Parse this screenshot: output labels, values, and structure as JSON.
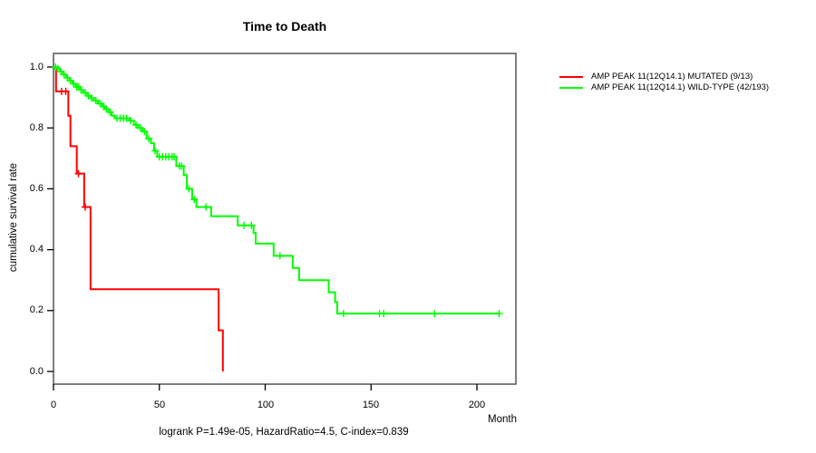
{
  "chart_data": {
    "type": "line",
    "subtype": "kaplan-meier-step",
    "title": "Time to Death",
    "xlabel": "Month",
    "ylabel": "cumulative survival rate",
    "annotation": "logrank P=1.49e-05, HazardRatio=4.5, C-index=0.839",
    "xlim": [
      0,
      218
    ],
    "ylim": [
      0,
      1
    ],
    "x_ticks": [
      "0",
      "50",
      "100",
      "150",
      "200"
    ],
    "x_tick_values": [
      0,
      50,
      100,
      150,
      200
    ],
    "y_ticks": [
      "1.0",
      "0.8",
      "0.6",
      "0.4",
      "0.2",
      "0.0"
    ],
    "y_tick_values": [
      1.0,
      0.8,
      0.6,
      0.4,
      0.2,
      0.0
    ],
    "grid": false,
    "legend_position": "right-outside",
    "frame_color": "#555555",
    "series": [
      {
        "name": "AMP PEAK 11(12Q14.1) MUTATED (9/13)",
        "color": "#ff0000",
        "steps": [
          [
            0,
            1.0
          ],
          [
            1.2,
            0.92
          ],
          [
            7,
            0.84
          ],
          [
            8,
            0.74
          ],
          [
            11,
            0.65
          ],
          [
            14.5,
            0.54
          ],
          [
            17.5,
            0.27
          ],
          [
            78,
            0.135
          ],
          [
            80,
            0.0
          ]
        ],
        "censors": [
          [
            3.8,
            0.92
          ],
          [
            5.8,
            0.92
          ],
          [
            11.8,
            0.65
          ],
          [
            15,
            0.54
          ]
        ]
      },
      {
        "name": "AMP PEAK 11(12Q14.1) WILD-TYPE (42/193)",
        "color": "#00ff00",
        "steps": [
          [
            0,
            1.0
          ],
          [
            1.5,
            0.995
          ],
          [
            3,
            0.985
          ],
          [
            4.5,
            0.975
          ],
          [
            6,
            0.965
          ],
          [
            7.5,
            0.955
          ],
          [
            9,
            0.945
          ],
          [
            10.5,
            0.935
          ],
          [
            12.5,
            0.925
          ],
          [
            14,
            0.915
          ],
          [
            16,
            0.905
          ],
          [
            17.5,
            0.898
          ],
          [
            19,
            0.89
          ],
          [
            21,
            0.88
          ],
          [
            23,
            0.87
          ],
          [
            24.5,
            0.862
          ],
          [
            26,
            0.852
          ],
          [
            27.5,
            0.84
          ],
          [
            29,
            0.832
          ],
          [
            36,
            0.824
          ],
          [
            38,
            0.81
          ],
          [
            40,
            0.8
          ],
          [
            42,
            0.788
          ],
          [
            44,
            0.765
          ],
          [
            46,
            0.75
          ],
          [
            47.5,
            0.725
          ],
          [
            49,
            0.705
          ],
          [
            58,
            0.675
          ],
          [
            61.5,
            0.645
          ],
          [
            63,
            0.6
          ],
          [
            65.5,
            0.565
          ],
          [
            67.5,
            0.54
          ],
          [
            74.5,
            0.51
          ],
          [
            87,
            0.48
          ],
          [
            94.5,
            0.455
          ],
          [
            95.5,
            0.42
          ],
          [
            104,
            0.38
          ],
          [
            113,
            0.34
          ],
          [
            116,
            0.3
          ],
          [
            130,
            0.26
          ],
          [
            133,
            0.228
          ],
          [
            134,
            0.19
          ],
          [
            211,
            0.19
          ]
        ],
        "censors": [
          [
            1,
            1.0
          ],
          [
            2,
            0.995
          ],
          [
            3.5,
            0.985
          ],
          [
            5,
            0.975
          ],
          [
            6.5,
            0.965
          ],
          [
            8,
            0.955
          ],
          [
            9.5,
            0.945
          ],
          [
            11,
            0.935
          ],
          [
            11.8,
            0.935
          ],
          [
            13,
            0.925
          ],
          [
            15,
            0.915
          ],
          [
            16.5,
            0.905
          ],
          [
            18,
            0.898
          ],
          [
            20,
            0.89
          ],
          [
            22,
            0.88
          ],
          [
            23.8,
            0.87
          ],
          [
            25,
            0.862
          ],
          [
            26.8,
            0.852
          ],
          [
            30,
            0.832
          ],
          [
            31.5,
            0.832
          ],
          [
            33,
            0.832
          ],
          [
            34.5,
            0.832
          ],
          [
            36.5,
            0.824
          ],
          [
            39,
            0.81
          ],
          [
            41,
            0.8
          ],
          [
            43,
            0.788
          ],
          [
            45,
            0.765
          ],
          [
            48,
            0.725
          ],
          [
            50,
            0.705
          ],
          [
            51.5,
            0.705
          ],
          [
            53,
            0.705
          ],
          [
            54.5,
            0.705
          ],
          [
            56,
            0.705
          ],
          [
            57,
            0.705
          ],
          [
            59.5,
            0.675
          ],
          [
            60.5,
            0.675
          ],
          [
            64,
            0.6
          ],
          [
            66.5,
            0.565
          ],
          [
            72,
            0.54
          ],
          [
            90,
            0.48
          ],
          [
            93.5,
            0.48
          ],
          [
            107,
            0.38
          ],
          [
            137,
            0.19
          ],
          [
            154,
            0.19
          ],
          [
            156,
            0.19
          ],
          [
            180,
            0.19
          ],
          [
            210.5,
            0.19
          ]
        ]
      }
    ]
  }
}
